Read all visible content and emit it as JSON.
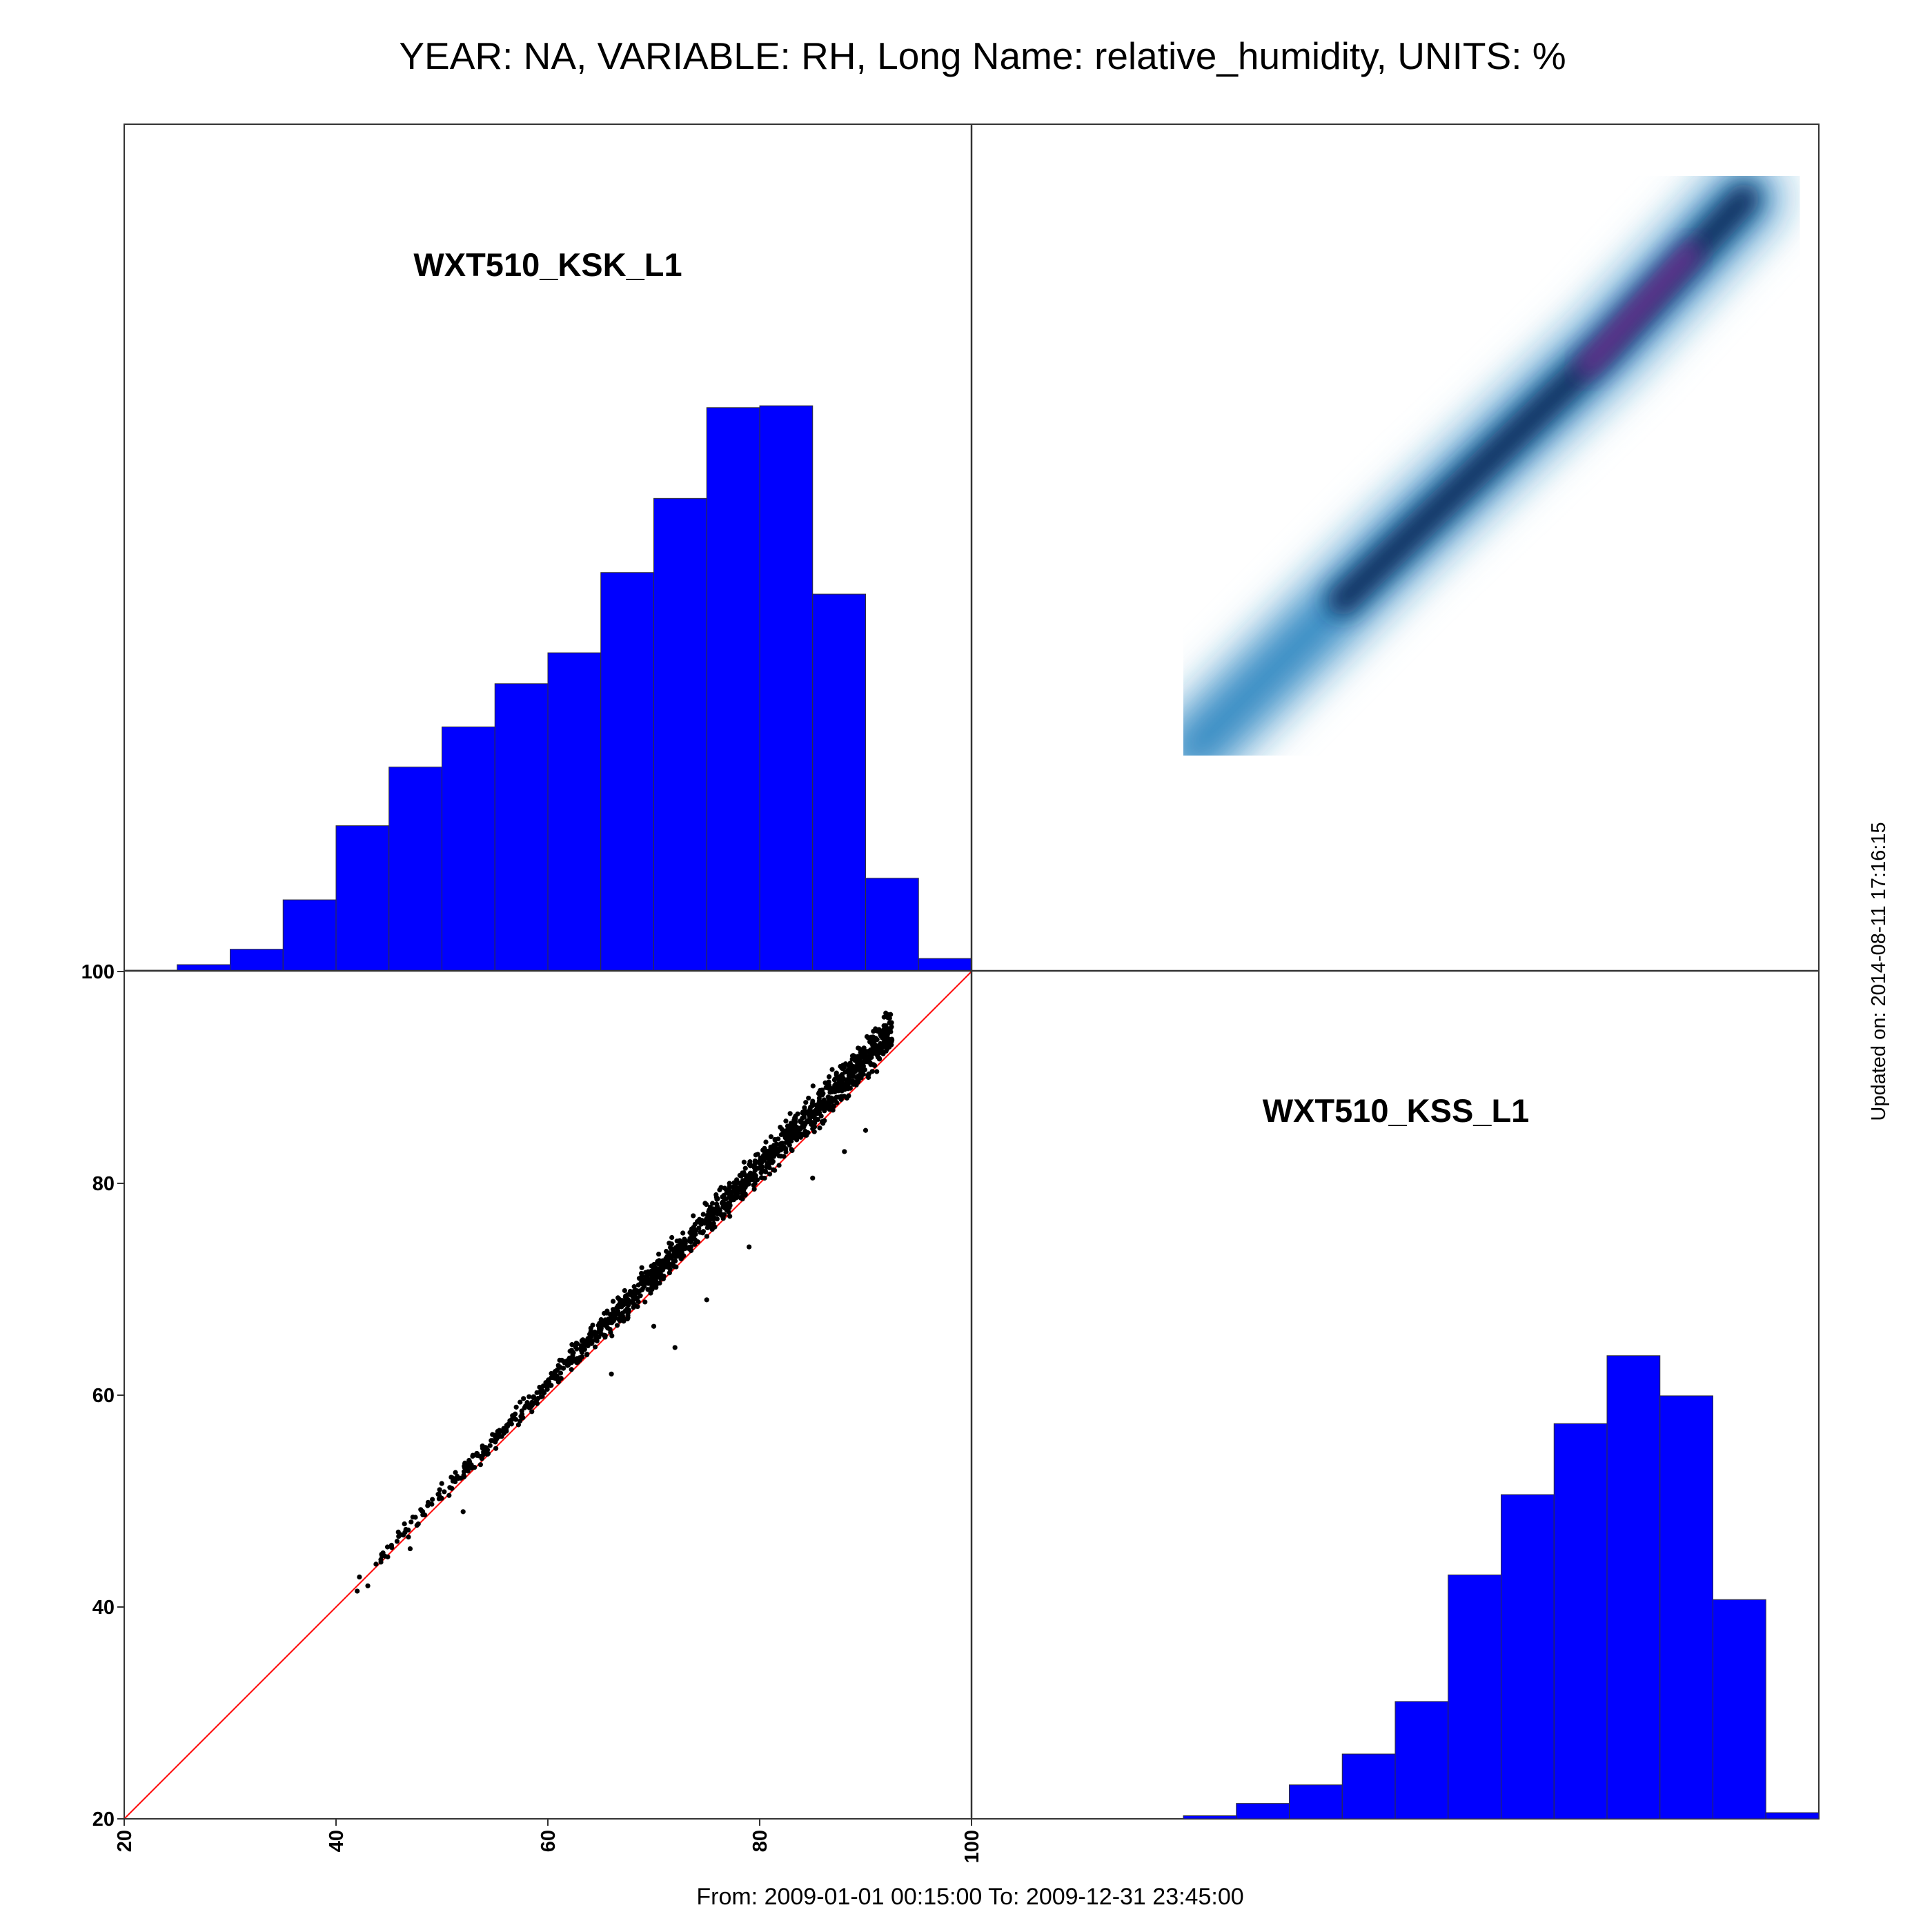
{
  "title": "YEAR: NA, VARIABLE: RH, Long Name: relative_humidity, UNITS: %",
  "footer": "From: 2009-01-01 00:15:00 To: 2009-12-31 23:45:00",
  "updated": "Updated on: 2014-08-11 17:16:15",
  "colors": {
    "bar_fill": "#0000ff",
    "bar_edge": "#333333",
    "identity_line": "#ff0000",
    "points": "#000000",
    "density_low": "#c6e0f0",
    "density_mid": "#2e86c1",
    "density_high": "#0b2a5a",
    "density_peak": "#8b2fa0"
  },
  "chart_data": [
    {
      "type": "bar",
      "panel": "top-left",
      "title": "WXT510_KSK_L1",
      "bin_width": 5,
      "categories": [
        20,
        25,
        30,
        35,
        40,
        45,
        50,
        55,
        60,
        65,
        70,
        75,
        80,
        85,
        90,
        95
      ],
      "values": [
        0.1,
        1.0,
        3.5,
        11.5,
        23.5,
        33.0,
        39.5,
        46.5,
        51.5,
        64.5,
        76.5,
        91.2,
        91.5,
        61.0,
        15.0,
        2.0
      ],
      "xlim": [
        20,
        100
      ]
    },
    {
      "type": "heatmap",
      "panel": "top-right",
      "title": "",
      "description_values": {
        "x_range": [
          41,
          98
        ],
        "y_range": [
          41,
          96
        ]
      },
      "ridge": [
        [
          41,
          41
        ],
        [
          60,
          60
        ],
        [
          80,
          79
        ],
        [
          93,
          93
        ]
      ],
      "xlim": [
        20,
        100
      ],
      "ylim": [
        20,
        100
      ]
    },
    {
      "type": "scatter",
      "panel": "bottom-left",
      "title": "",
      "xlabel": "",
      "ylabel": "",
      "xlim": [
        20,
        100
      ],
      "ylim": [
        20,
        100
      ],
      "x_ticks": [
        "20",
        "40",
        "60",
        "80",
        "100"
      ],
      "y_ticks": [
        "20",
        "40",
        "60",
        "80",
        "100"
      ],
      "identity_line": [
        [
          20,
          20
        ],
        [
          100,
          100
        ]
      ],
      "trend": {
        "x_range": [
          41.5,
          92.5
        ],
        "slope": 1.03,
        "intercept": -0.8
      },
      "outliers": [
        [
          42,
          41.5
        ],
        [
          43,
          42
        ],
        [
          47,
          45.5
        ],
        [
          52,
          49
        ],
        [
          66,
          62
        ],
        [
          70,
          66.5
        ],
        [
          72,
          64.5
        ],
        [
          75,
          69
        ],
        [
          79,
          74
        ],
        [
          85,
          80.5
        ],
        [
          88,
          83
        ],
        [
          90,
          85
        ]
      ]
    },
    {
      "type": "bar",
      "panel": "bottom-right",
      "title": "WXT510_KSS_L1",
      "bin_width": 5,
      "categories": [
        40,
        45,
        50,
        55,
        60,
        65,
        70,
        75,
        80,
        85,
        90,
        95
      ],
      "values": [
        0.5,
        2.5,
        5.5,
        10.5,
        19.0,
        39.5,
        52.5,
        64.0,
        75.0,
        68.5,
        35.5,
        1.0
      ],
      "xlim": [
        20,
        100
      ]
    }
  ]
}
